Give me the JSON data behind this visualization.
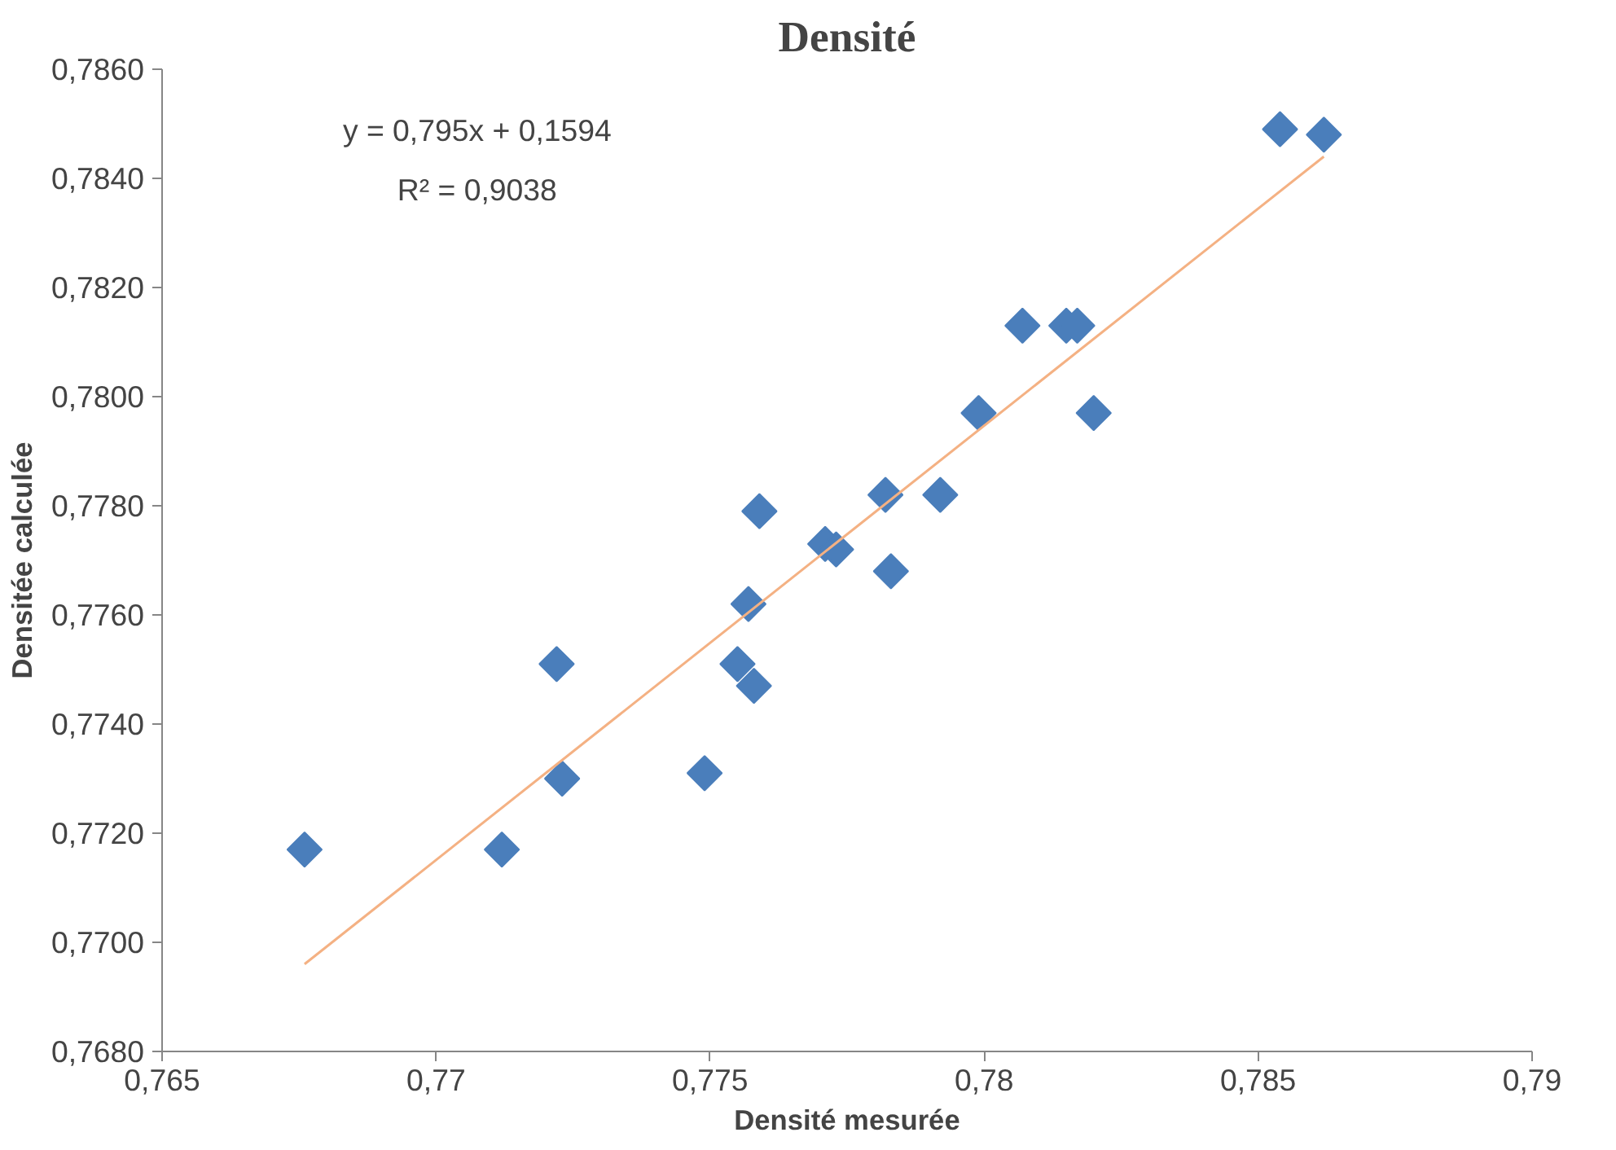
{
  "chart_data": {
    "type": "scatter",
    "title": "Densité",
    "xlabel": "Densité mesurée",
    "ylabel": "Densitée calculée",
    "xlim": [
      0.765,
      0.79
    ],
    "ylim": [
      0.768,
      0.786
    ],
    "xticks": [
      {
        "value": 0.765,
        "label": "0,765"
      },
      {
        "value": 0.77,
        "label": "0,77"
      },
      {
        "value": 0.775,
        "label": "0,775"
      },
      {
        "value": 0.78,
        "label": "0,78"
      },
      {
        "value": 0.785,
        "label": "0,785"
      },
      {
        "value": 0.79,
        "label": "0,79"
      }
    ],
    "yticks": [
      {
        "value": 0.768,
        "label": "0,7680"
      },
      {
        "value": 0.77,
        "label": "0,7700"
      },
      {
        "value": 0.772,
        "label": "0,7720"
      },
      {
        "value": 0.774,
        "label": "0,7740"
      },
      {
        "value": 0.776,
        "label": "0,7760"
      },
      {
        "value": 0.778,
        "label": "0,7780"
      },
      {
        "value": 0.78,
        "label": "0,7800"
      },
      {
        "value": 0.782,
        "label": "0,7820"
      },
      {
        "value": 0.784,
        "label": "0,7840"
      },
      {
        "value": 0.786,
        "label": "0,7860"
      }
    ],
    "grid": false,
    "marker": "diamond",
    "series": [
      {
        "color": "#4a7ebb",
        "x": [
          0.7676,
          0.7712,
          0.7722,
          0.7723,
          0.7749,
          0.7755,
          0.7758,
          0.7757,
          0.7759,
          0.7771,
          0.7773,
          0.7782,
          0.7783,
          0.7792,
          0.7799,
          0.7807,
          0.7815,
          0.7817,
          0.782,
          0.7854,
          0.7862
        ],
        "values": [
          0.7717,
          0.7717,
          0.7751,
          0.773,
          0.7731,
          0.7751,
          0.7747,
          0.7762,
          0.7779,
          0.7773,
          0.7772,
          0.7782,
          0.7768,
          0.7782,
          0.7797,
          0.7813,
          0.7813,
          0.7813,
          0.7797,
          0.7849,
          0.7848
        ]
      },
      {
        "type": "line",
        "color": "#f4b183",
        "marker": "none",
        "x": [
          0.7676,
          0.7862
        ],
        "values": [
          0.7696,
          0.7844
        ]
      }
    ],
    "annotations": [
      "y = 0,795x + 0,1594",
      "R² = 0,9038"
    ]
  }
}
